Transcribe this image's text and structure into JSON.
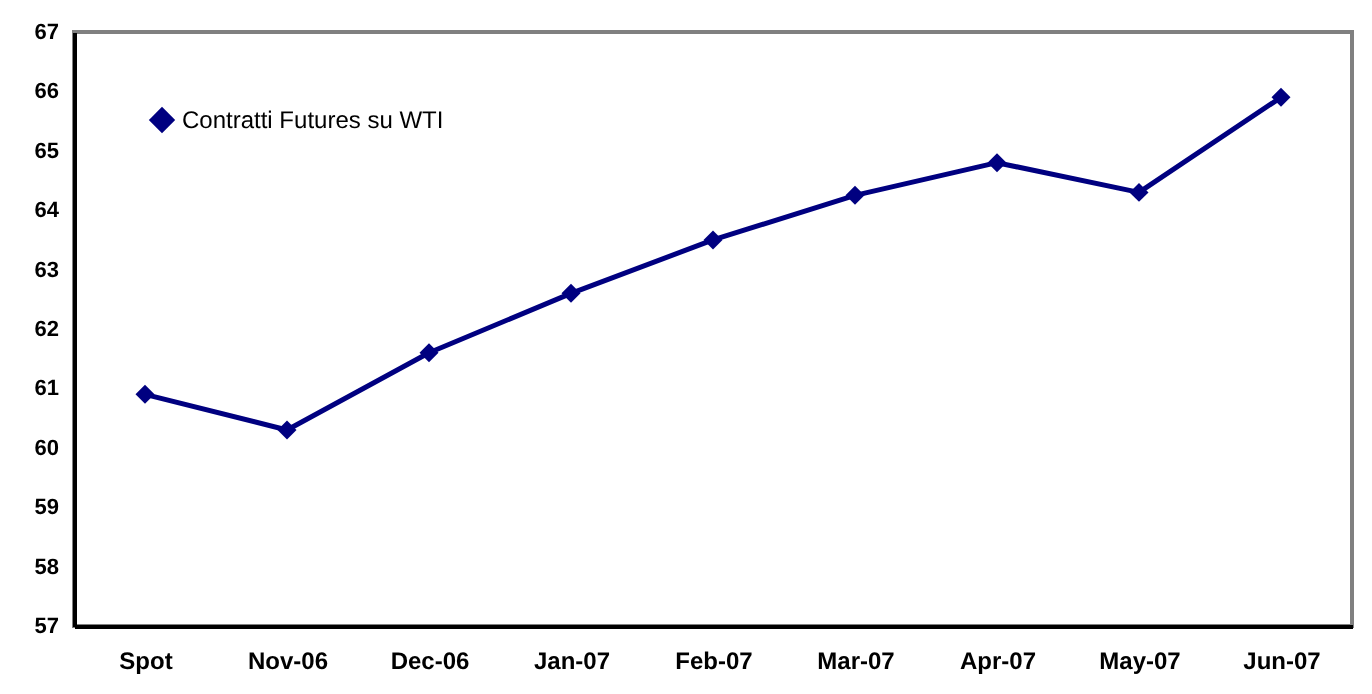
{
  "chart_data": {
    "type": "line",
    "categories": [
      "Spot",
      "Nov-06",
      "Dec-06",
      "Jan-07",
      "Feb-07",
      "Mar-07",
      "Apr-07",
      "May-07",
      "Jun-07"
    ],
    "series": [
      {
        "name": "Contratti Futures su WTI",
        "color": "#000080",
        "values": [
          60.9,
          60.3,
          61.6,
          62.6,
          63.5,
          64.25,
          64.8,
          64.3,
          65.9
        ]
      }
    ],
    "ylim": [
      57,
      67
    ],
    "yticks": [
      57,
      58,
      59,
      60,
      61,
      62,
      63,
      64,
      65,
      66,
      67
    ],
    "grid": false,
    "legend": "top left",
    "marker": "diamond",
    "line_style": "solid"
  }
}
